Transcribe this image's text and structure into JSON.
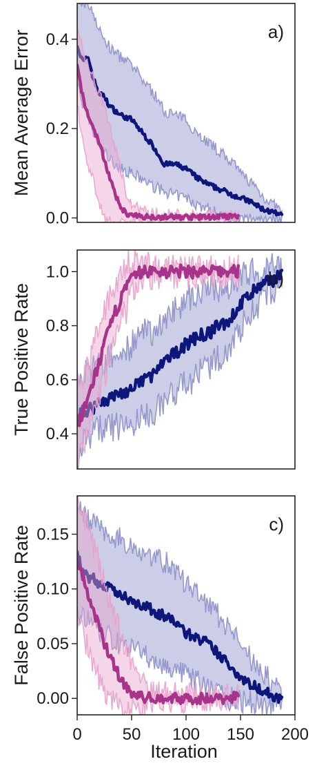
{
  "figure": {
    "xlabel": "Iteration",
    "colors": {
      "blue": "#0d167a",
      "magenta": "#a8338a",
      "blue_band": "#8d90c8",
      "magenta_band": "#e7a3cc"
    }
  },
  "chart_data": [
    {
      "type": "line",
      "panel_label": "a)",
      "ylabel": "Mean Average Error",
      "xlim": [
        0,
        200
      ],
      "ylim": [
        -0.01,
        0.48
      ],
      "yticks": [
        0.0,
        0.2,
        0.4
      ],
      "ytick_labels": [
        "0.0",
        "0.2",
        "0.4"
      ],
      "xticks": [],
      "xtick_labels": [],
      "noise": 0.006,
      "series": [
        {
          "color": "blue",
          "x": [
            0,
            3,
            6,
            10,
            15,
            20,
            25,
            30,
            35,
            40,
            50,
            60,
            70,
            80,
            90,
            100,
            110,
            120,
            130,
            140,
            150,
            160,
            170,
            180,
            185,
            188
          ],
          "y": [
            0.39,
            0.36,
            0.35,
            0.36,
            0.31,
            0.28,
            0.27,
            0.25,
            0.24,
            0.23,
            0.22,
            0.19,
            0.16,
            0.12,
            0.12,
            0.11,
            0.09,
            0.075,
            0.065,
            0.055,
            0.045,
            0.035,
            0.02,
            0.012,
            0.007,
            0.005
          ],
          "lower": [
            0.31,
            0.27,
            0.25,
            0.22,
            0.19,
            0.16,
            0.15,
            0.13,
            0.12,
            0.11,
            0.1,
            0.085,
            0.07,
            0.06,
            0.05,
            0.045,
            0.03,
            0.02,
            0.01,
            0.0,
            -0.005,
            0.0,
            0.0,
            0.0,
            0.0,
            0.0
          ],
          "upper": [
            0.48,
            0.48,
            0.48,
            0.48,
            0.46,
            0.42,
            0.4,
            0.38,
            0.37,
            0.36,
            0.34,
            0.31,
            0.28,
            0.24,
            0.23,
            0.22,
            0.19,
            0.17,
            0.15,
            0.13,
            0.1,
            0.08,
            0.05,
            0.03,
            0.02,
            0.015
          ]
        },
        {
          "color": "magenta",
          "x": [
            0,
            3,
            6,
            10,
            15,
            20,
            25,
            30,
            35,
            40,
            45,
            50,
            60,
            80,
            100,
            120,
            140,
            148
          ],
          "y": [
            0.34,
            0.3,
            0.26,
            0.23,
            0.2,
            0.17,
            0.13,
            0.09,
            0.05,
            0.025,
            0.01,
            0.005,
            0.003,
            0.002,
            0.002,
            0.002,
            0.003,
            0.003
          ],
          "lower": [
            0.26,
            0.2,
            0.16,
            0.12,
            0.08,
            0.04,
            0.0,
            -0.01,
            -0.01,
            -0.01,
            -0.01,
            -0.01,
            -0.005,
            -0.003,
            -0.003,
            -0.003,
            -0.003,
            -0.003
          ],
          "upper": [
            0.41,
            0.4,
            0.37,
            0.34,
            0.31,
            0.28,
            0.25,
            0.2,
            0.16,
            0.11,
            0.06,
            0.03,
            0.015,
            0.008,
            0.007,
            0.007,
            0.008,
            0.008
          ]
        }
      ]
    },
    {
      "type": "line",
      "panel_label": "b)",
      "ylabel": "True Positive Rate",
      "xlim": [
        0,
        200
      ],
      "ylim": [
        0.27,
        1.08
      ],
      "yticks": [
        0.4,
        0.6,
        0.8,
        1.0
      ],
      "ytick_labels": [
        "0.4",
        "0.6",
        "0.8",
        "1.0"
      ],
      "xticks": [],
      "xtick_labels": [],
      "noise": 0.025,
      "series": [
        {
          "color": "blue",
          "x": [
            0,
            5,
            10,
            15,
            20,
            30,
            40,
            50,
            60,
            70,
            80,
            90,
            100,
            110,
            120,
            130,
            140,
            150,
            160,
            170,
            180,
            185,
            188
          ],
          "y": [
            0.45,
            0.48,
            0.49,
            0.5,
            0.52,
            0.53,
            0.55,
            0.56,
            0.6,
            0.62,
            0.66,
            0.7,
            0.73,
            0.76,
            0.77,
            0.8,
            0.82,
            0.88,
            0.92,
            0.95,
            0.97,
            0.99,
            1.0
          ],
          "lower": [
            0.3,
            0.36,
            0.4,
            0.4,
            0.42,
            0.42,
            0.43,
            0.43,
            0.46,
            0.48,
            0.52,
            0.56,
            0.58,
            0.62,
            0.64,
            0.68,
            0.72,
            0.79,
            0.85,
            0.9,
            0.93,
            0.96,
            0.97
          ],
          "upper": [
            0.6,
            0.62,
            0.62,
            0.64,
            0.66,
            0.68,
            0.7,
            0.73,
            0.77,
            0.78,
            0.82,
            0.86,
            0.9,
            0.92,
            0.93,
            0.94,
            0.95,
            0.98,
            1.0,
            1.01,
            1.02,
            1.02,
            1.02
          ]
        },
        {
          "color": "magenta",
          "x": [
            0,
            5,
            10,
            15,
            20,
            25,
            30,
            35,
            40,
            45,
            50,
            55,
            60,
            70,
            80,
            100,
            120,
            140,
            148
          ],
          "y": [
            0.43,
            0.47,
            0.53,
            0.6,
            0.66,
            0.73,
            0.79,
            0.85,
            0.9,
            0.94,
            0.97,
            0.99,
            1.0,
            1.0,
            1.0,
            1.0,
            1.0,
            1.0,
            1.0
          ],
          "lower": [
            0.29,
            0.34,
            0.41,
            0.48,
            0.54,
            0.61,
            0.67,
            0.74,
            0.8,
            0.86,
            0.92,
            0.96,
            0.98,
            0.99,
            0.99,
            0.99,
            0.99,
            0.99,
            0.99
          ],
          "upper": [
            0.56,
            0.6,
            0.66,
            0.72,
            0.79,
            0.85,
            0.91,
            0.96,
            1.0,
            1.03,
            1.04,
            1.04,
            1.03,
            1.02,
            1.01,
            1.01,
            1.01,
            1.01,
            1.01
          ]
        }
      ]
    },
    {
      "type": "line",
      "panel_label": "c)",
      "ylabel": "False Positive Rate",
      "xlim": [
        0,
        200
      ],
      "ylim": [
        -0.015,
        0.185
      ],
      "yticks": [
        0.0,
        0.05,
        0.1,
        0.15
      ],
      "ytick_labels": [
        "0.00",
        "0.05",
        "0.10",
        "0.15"
      ],
      "xticks": [
        0,
        50,
        100,
        150,
        200
      ],
      "xtick_labels": [
        "0",
        "50",
        "100",
        "150",
        "200"
      ],
      "noise": 0.005,
      "series": [
        {
          "color": "blue",
          "x": [
            0,
            5,
            10,
            15,
            20,
            30,
            40,
            50,
            60,
            70,
            80,
            90,
            100,
            110,
            120,
            130,
            140,
            150,
            160,
            170,
            180,
            188
          ],
          "y": [
            0.13,
            0.12,
            0.11,
            0.11,
            0.105,
            0.1,
            0.095,
            0.09,
            0.085,
            0.08,
            0.075,
            0.07,
            0.06,
            0.055,
            0.05,
            0.04,
            0.03,
            0.02,
            0.012,
            0.008,
            0.002,
            0.0
          ],
          "lower": [
            0.08,
            0.075,
            0.07,
            0.065,
            0.06,
            0.055,
            0.05,
            0.045,
            0.04,
            0.035,
            0.03,
            0.025,
            0.02,
            0.015,
            0.01,
            0.005,
            0.0,
            -0.002,
            -0.004,
            -0.005,
            -0.004,
            -0.003
          ],
          "upper": [
            0.185,
            0.17,
            0.165,
            0.16,
            0.155,
            0.15,
            0.145,
            0.14,
            0.135,
            0.13,
            0.125,
            0.115,
            0.105,
            0.095,
            0.085,
            0.075,
            0.065,
            0.05,
            0.035,
            0.025,
            0.012,
            0.005
          ]
        },
        {
          "color": "magenta",
          "x": [
            0,
            5,
            10,
            15,
            20,
            25,
            30,
            35,
            40,
            45,
            50,
            55,
            60,
            70,
            80,
            100,
            120,
            140,
            148
          ],
          "y": [
            0.125,
            0.11,
            0.095,
            0.08,
            0.065,
            0.05,
            0.04,
            0.028,
            0.018,
            0.01,
            0.005,
            0.002,
            0.001,
            0.0,
            0.0,
            0.0,
            0.0,
            0.0,
            0.002
          ],
          "lower": [
            0.07,
            0.06,
            0.045,
            0.03,
            0.018,
            0.008,
            0.0,
            -0.005,
            -0.008,
            -0.01,
            -0.01,
            -0.008,
            -0.006,
            -0.004,
            -0.003,
            -0.003,
            -0.003,
            -0.003,
            -0.002
          ],
          "upper": [
            0.185,
            0.17,
            0.155,
            0.14,
            0.125,
            0.105,
            0.09,
            0.075,
            0.058,
            0.045,
            0.035,
            0.025,
            0.015,
            0.008,
            0.005,
            0.004,
            0.004,
            0.004,
            0.006
          ]
        }
      ]
    }
  ]
}
